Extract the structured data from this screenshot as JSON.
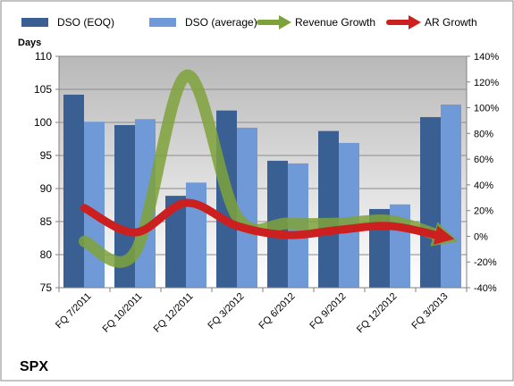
{
  "chart_data": {
    "type": "bar",
    "title": "SPX",
    "ylabel": "Days",
    "ylim": [
      75,
      110
    ],
    "y2lim": [
      -40,
      140
    ],
    "y_ticks": [
      75,
      80,
      85,
      90,
      95,
      100,
      105,
      110
    ],
    "y2_ticks": [
      "-40%",
      "-20%",
      "0%",
      "20%",
      "40%",
      "60%",
      "80%",
      "100%",
      "120%",
      "140%"
    ],
    "grid": true,
    "legend_position": "top",
    "categories": [
      "FQ 7/2011",
      "FQ 10/2011",
      "FQ 12/2011",
      "FQ 3/2012",
      "FQ 6/2012",
      "FQ 9/2012",
      "FQ 12/2012",
      "FQ 3/2013"
    ],
    "series": [
      {
        "name": "DSO (EOQ)",
        "kind": "bar",
        "axis": "left",
        "color": "#3a5f93",
        "values": [
          104.2,
          99.6,
          88.9,
          101.8,
          94.2,
          98.7,
          86.9,
          100.8
        ]
      },
      {
        "name": "DSO (average)",
        "kind": "bar",
        "axis": "left",
        "color": "#6f9ad7",
        "values": [
          100.1,
          100.5,
          90.9,
          99.2,
          93.8,
          96.9,
          87.6,
          102.7
        ]
      },
      {
        "name": "Revenue Growth",
        "kind": "line",
        "axis": "right",
        "unit": "%",
        "color": "#7ea23a",
        "values": [
          -4,
          -12,
          125,
          15,
          10,
          10,
          12,
          0
        ]
      },
      {
        "name": "AR Growth",
        "kind": "line",
        "axis": "right",
        "unit": "%",
        "color": "#cc1f1f",
        "values": [
          22,
          3,
          26,
          8,
          1,
          5,
          8,
          0
        ]
      }
    ]
  }
}
